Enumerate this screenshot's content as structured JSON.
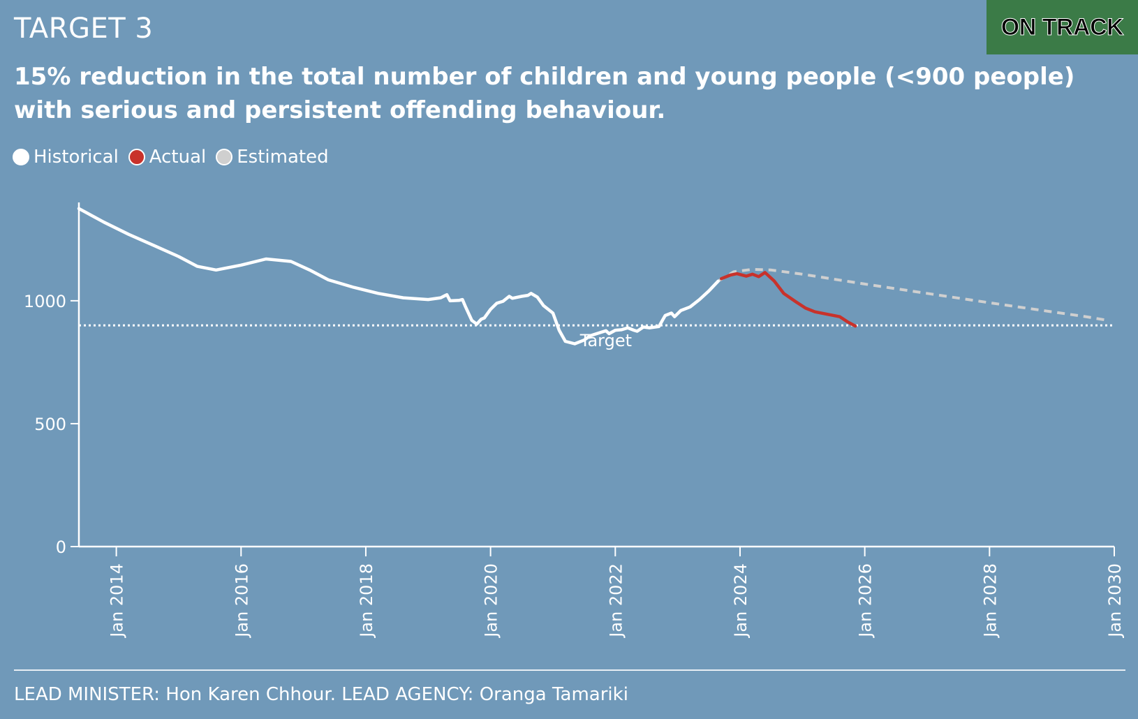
{
  "header": {
    "target_label": "TARGET 3",
    "status": "ON TRACK",
    "status_color": "#3b7b47",
    "headline_line1": "15% reduction in the total number of children and young people (<900 people)",
    "headline_line2": "with serious and persistent offending behaviour."
  },
  "legend": [
    {
      "label": "Historical",
      "color": "#ffffff"
    },
    {
      "label": "Actual",
      "color": "#c8322b"
    },
    {
      "label": "Estimated",
      "color": "#cfcfcf"
    }
  ],
  "footer": {
    "text": "LEAD MINISTER: Hon Karen Chhour. LEAD AGENCY: Oranga Tamariki"
  },
  "chart_data": {
    "type": "line",
    "title": "15% reduction in the total number of children and young people (<900 people) with serious and persistent offending behaviour.",
    "xlabel": "",
    "ylabel": "",
    "xlim": [
      2013.4,
      2030.0
    ],
    "ylim": [
      0,
      1400
    ],
    "y_ticks": [
      0,
      500,
      1000
    ],
    "x_ticks": [
      {
        "value": 2014,
        "label": "Jan 2014"
      },
      {
        "value": 2016,
        "label": "Jan 2016"
      },
      {
        "value": 2018,
        "label": "Jan 2018"
      },
      {
        "value": 2020,
        "label": "Jan 2020"
      },
      {
        "value": 2022,
        "label": "Jan 2022"
      },
      {
        "value": 2024,
        "label": "Jan 2024"
      },
      {
        "value": 2026,
        "label": "Jan 2026"
      },
      {
        "value": 2028,
        "label": "Jan 2028"
      },
      {
        "value": 2030,
        "label": "Jan 2030"
      }
    ],
    "target": {
      "value": 900,
      "label": "Target"
    },
    "series": [
      {
        "name": "Historical",
        "color": "#ffffff",
        "style": "solid",
        "points": [
          [
            2013.4,
            1375
          ],
          [
            2013.8,
            1320
          ],
          [
            2014.2,
            1270
          ],
          [
            2014.6,
            1225
          ],
          [
            2015.0,
            1180
          ],
          [
            2015.3,
            1140
          ],
          [
            2015.6,
            1125
          ],
          [
            2016.0,
            1145
          ],
          [
            2016.4,
            1170
          ],
          [
            2016.8,
            1160
          ],
          [
            2017.1,
            1125
          ],
          [
            2017.4,
            1085
          ],
          [
            2017.8,
            1055
          ],
          [
            2018.2,
            1030
          ],
          [
            2018.6,
            1012
          ],
          [
            2019.0,
            1005
          ],
          [
            2019.2,
            1012
          ],
          [
            2019.3,
            1025
          ],
          [
            2019.35,
            1000
          ],
          [
            2019.5,
            1002
          ],
          [
            2019.55,
            1005
          ],
          [
            2019.6,
            975
          ],
          [
            2019.7,
            920
          ],
          [
            2019.78,
            905
          ],
          [
            2019.85,
            925
          ],
          [
            2019.9,
            930
          ],
          [
            2020.0,
            965
          ],
          [
            2020.1,
            990
          ],
          [
            2020.2,
            998
          ],
          [
            2020.3,
            1018
          ],
          [
            2020.35,
            1010
          ],
          [
            2020.5,
            1018
          ],
          [
            2020.6,
            1022
          ],
          [
            2020.65,
            1030
          ],
          [
            2020.75,
            1015
          ],
          [
            2020.85,
            980
          ],
          [
            2021.0,
            950
          ],
          [
            2021.1,
            880
          ],
          [
            2021.2,
            835
          ],
          [
            2021.35,
            825
          ],
          [
            2021.5,
            840
          ],
          [
            2021.6,
            858
          ],
          [
            2021.75,
            870
          ],
          [
            2021.85,
            878
          ],
          [
            2021.9,
            866
          ],
          [
            2022.0,
            880
          ],
          [
            2022.1,
            882
          ],
          [
            2022.2,
            890
          ],
          [
            2022.3,
            880
          ],
          [
            2022.35,
            876
          ],
          [
            2022.45,
            893
          ],
          [
            2022.55,
            890
          ],
          [
            2022.7,
            895
          ],
          [
            2022.8,
            940
          ],
          [
            2022.9,
            950
          ],
          [
            2022.95,
            935
          ],
          [
            2023.05,
            960
          ],
          [
            2023.2,
            975
          ],
          [
            2023.35,
            1005
          ],
          [
            2023.5,
            1040
          ],
          [
            2023.65,
            1080
          ]
        ]
      },
      {
        "name": "Actual",
        "color": "#c8322b",
        "style": "solid",
        "points": [
          [
            2023.7,
            1090
          ],
          [
            2023.85,
            1105
          ],
          [
            2023.95,
            1110
          ],
          [
            2024.1,
            1100
          ],
          [
            2024.2,
            1108
          ],
          [
            2024.3,
            1098
          ],
          [
            2024.4,
            1115
          ],
          [
            2024.55,
            1080
          ],
          [
            2024.7,
            1030
          ],
          [
            2024.9,
            995
          ],
          [
            2025.05,
            970
          ],
          [
            2025.2,
            955
          ],
          [
            2025.4,
            945
          ],
          [
            2025.6,
            935
          ],
          [
            2025.72,
            915
          ],
          [
            2025.85,
            897
          ]
        ]
      },
      {
        "name": "Estimated",
        "color": "#cfcfcf",
        "style": "dashed",
        "points": [
          [
            2023.65,
            1080
          ],
          [
            2023.9,
            1118
          ],
          [
            2024.2,
            1128
          ],
          [
            2024.5,
            1125
          ],
          [
            2025.0,
            1108
          ],
          [
            2026.0,
            1068
          ],
          [
            2027.0,
            1030
          ],
          [
            2028.0,
            992
          ],
          [
            2029.0,
            955
          ],
          [
            2029.5,
            937
          ],
          [
            2029.9,
            920
          ]
        ]
      }
    ]
  }
}
